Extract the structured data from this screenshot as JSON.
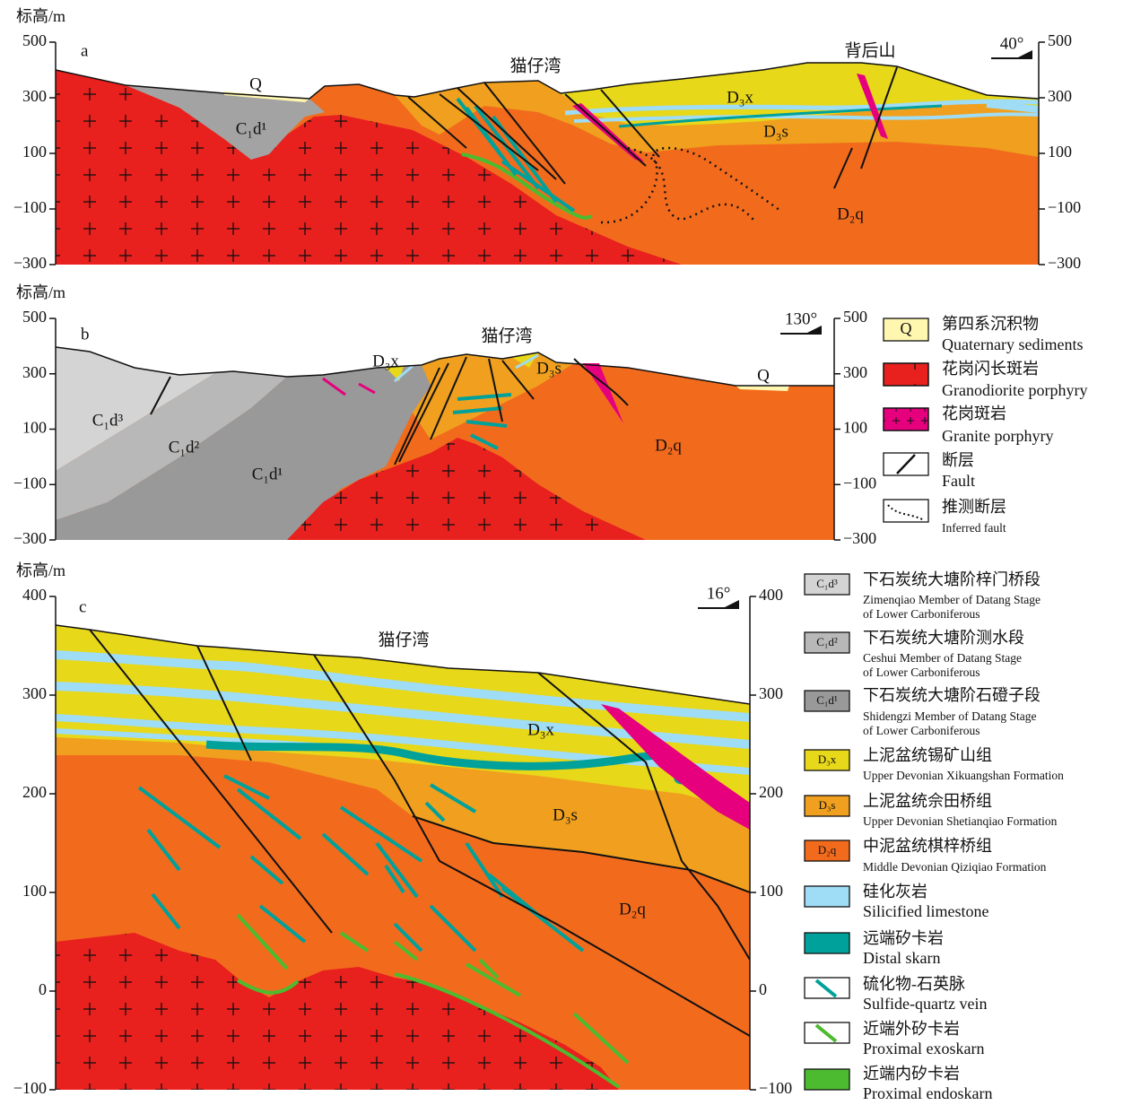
{
  "panels": [
    {
      "letter": "a",
      "elevation_label": "标高/m",
      "left_ticks": [
        "500",
        "300",
        "100",
        "−100",
        "−300"
      ],
      "right_ticks": [
        "500",
        "300",
        "100",
        "−100",
        "−300"
      ],
      "orientation": "40°",
      "labels": [
        "猫仔湾",
        "背后山",
        "Q",
        "C₁d¹",
        "D₃x",
        "D₃s",
        "D₂q"
      ]
    },
    {
      "letter": "b",
      "elevation_label": "标高/m",
      "left_ticks": [
        "500",
        "300",
        "100",
        "−100",
        "−300"
      ],
      "right_ticks": [
        "500",
        "300",
        "100",
        "−100",
        "−300"
      ],
      "orientation": "130°",
      "labels": [
        "猫仔湾",
        "D₃x",
        "D₃s",
        "Q",
        "C₁d³",
        "C₁d²",
        "C₁d¹",
        "D₂q"
      ]
    },
    {
      "letter": "c",
      "elevation_label": "标高/m",
      "left_ticks": [
        "400",
        "300",
        "200",
        "100",
        "0",
        "−100"
      ],
      "right_ticks": [
        "400",
        "300",
        "200",
        "100",
        "0",
        "−100"
      ],
      "orientation": "16°",
      "labels": [
        "猫仔湾",
        "D₃x",
        "D₃s",
        "D₂q"
      ]
    }
  ],
  "legend": [
    {
      "symbol": "Q",
      "zh": "第四系沉积物",
      "en": [
        "Quaternary sediments"
      ]
    },
    {
      "zh": "花岗闪长斑岩",
      "en": [
        "Granodiorite porphyry"
      ]
    },
    {
      "zh": "花岗斑岩",
      "en": [
        "Granite porphyry"
      ]
    },
    {
      "zh": "断层",
      "en": [
        "Fault"
      ]
    },
    {
      "zh": "推测断层",
      "en": [
        "Inferred fault"
      ]
    },
    {
      "symbol": "C₁d³",
      "zh": "下石炭统大塘阶梓门桥段",
      "en": [
        "Zimenqiao Member of Datang Stage",
        "of Lower Carboniferous"
      ]
    },
    {
      "symbol": "C₁d²",
      "zh": "下石炭统大塘阶测水段",
      "en": [
        "Ceshui Member of Datang Stage",
        "of Lower Carboniferous"
      ]
    },
    {
      "symbol": "C₁d¹",
      "zh": "下石炭统大塘阶石磴子段",
      "en": [
        "Shidengzi Member of Datang Stage",
        "of Lower Carboniferous"
      ]
    },
    {
      "symbol": "D₃x",
      "zh": "上泥盆统锡矿山组",
      "en": [
        "Upper Devonian Xikuangshan Formation"
      ]
    },
    {
      "symbol": "D₃s",
      "zh": "上泥盆统佘田桥组",
      "en": [
        "Upper Devonian Shetianqiao Formation"
      ]
    },
    {
      "symbol": "D₂q",
      "zh": "中泥盆统棋梓桥组",
      "en": [
        "Middle Devonian Qiziqiao Formation"
      ]
    },
    {
      "zh": "硅化灰岩",
      "en": [
        "Silicified limestone"
      ]
    },
    {
      "zh": "远端矽卡岩",
      "en": [
        "Distal skarn"
      ]
    },
    {
      "zh": "硫化物-石英脉",
      "en": [
        "Sulfide-quartz vein"
      ]
    },
    {
      "zh": "近端外矽卡岩",
      "en": [
        "Proximal exoskarn"
      ]
    },
    {
      "zh": "近端内矽卡岩",
      "en": [
        "Proximal endoskarn"
      ]
    }
  ]
}
